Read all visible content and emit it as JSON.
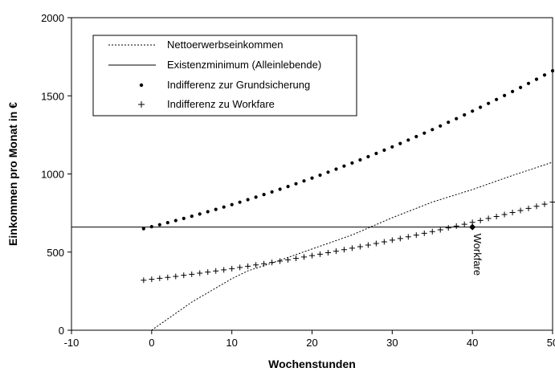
{
  "chart_data": {
    "type": "line",
    "xlabel": "Wochenstunden",
    "ylabel": "Einkommen pro Monat in €",
    "xlim": [
      -10,
      50
    ],
    "ylim": [
      0,
      2000
    ],
    "x_ticks": [
      "-10",
      "0",
      "10",
      "20",
      "30",
      "40",
      "50"
    ],
    "y_ticks": [
      "0",
      "500",
      "1000",
      "1500",
      "2000"
    ],
    "grid": false,
    "legend_position": "top-left",
    "series": [
      {
        "name": "Nettoerwerbseinkommen",
        "style": "dotted-line",
        "x": [
          0,
          5,
          10,
          12,
          15,
          20,
          25,
          30,
          35,
          40,
          45,
          50
        ],
        "y": [
          0,
          180,
          330,
          380,
          430,
          520,
          610,
          720,
          820,
          900,
          990,
          1075
        ]
      },
      {
        "name": "Existenzminimum (Alleinlebende)",
        "style": "solid-line",
        "x": [
          -10,
          50
        ],
        "y": [
          660,
          660
        ]
      },
      {
        "name": "Indifferenz zur Grundsicherung",
        "style": "dot-markers",
        "x": [
          -1,
          50
        ],
        "y": [
          650,
          1660
        ],
        "curve": "quadratic",
        "y_mid": 1060
      },
      {
        "name": "Indifferenz zu Workfare",
        "style": "plus-markers",
        "x": [
          -1,
          50
        ],
        "y": [
          320,
          820
        ],
        "curve": "quadratic",
        "y_mid": 520
      }
    ],
    "annotations": [
      {
        "text": "Workfare",
        "x": 40,
        "y": 660,
        "orientation": "vertical"
      }
    ]
  }
}
